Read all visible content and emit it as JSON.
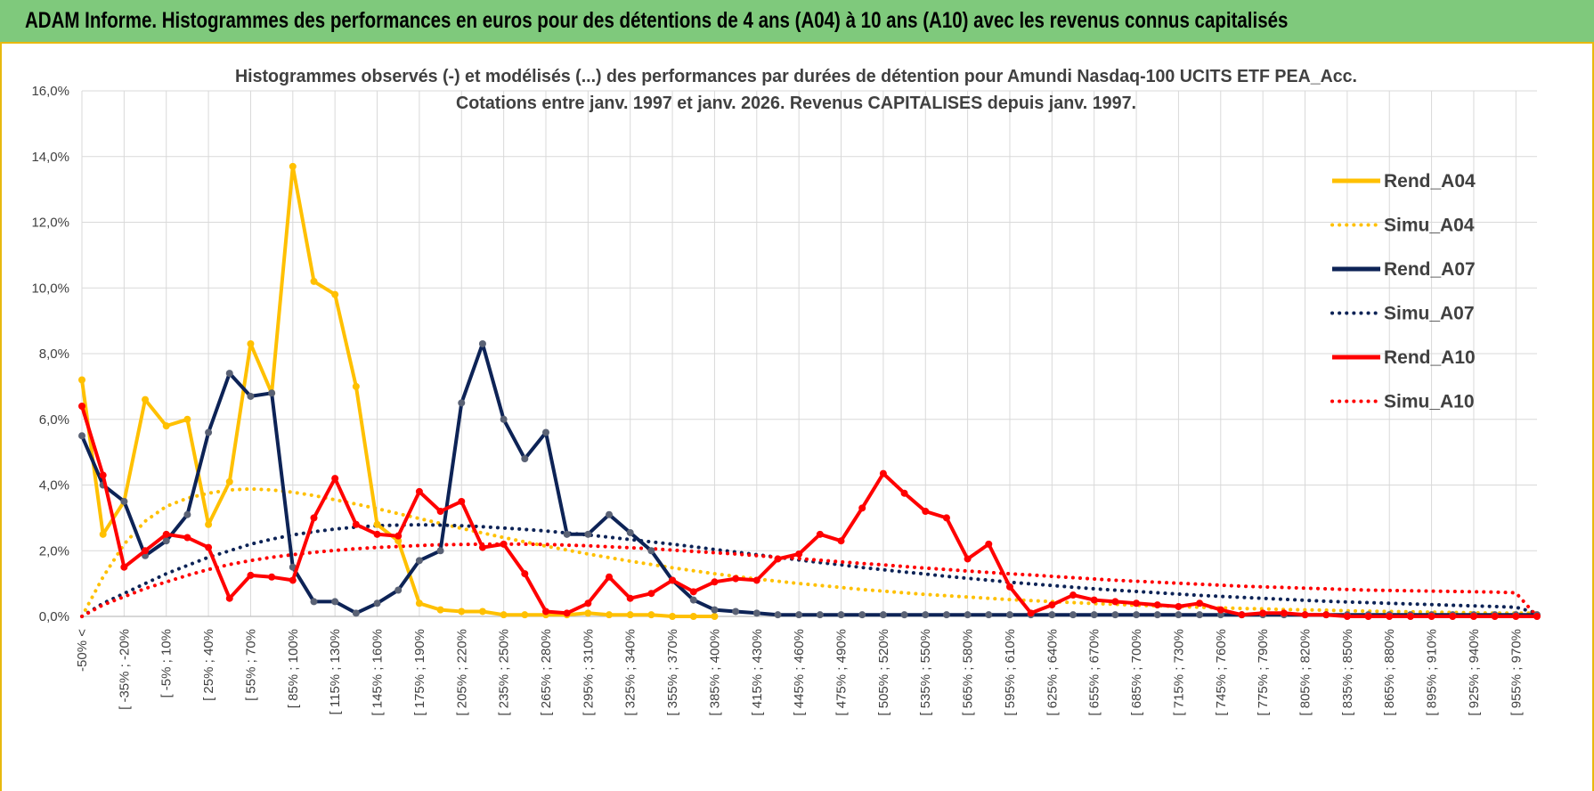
{
  "header": {
    "title": "ADAM Informe. Histogrammes des performances en euros pour des détentions de 4 ans (A04) à 10 ans (A10) avec les revenus connus capitalisés"
  },
  "colors": {
    "banner": "#7fc97c",
    "a04": "#FFC000",
    "a07": "#0D2356",
    "a10": "#FF0000",
    "marker_a04": "#FFC000",
    "marker_a07": "#5A6275",
    "marker_a10": "#FF0000",
    "grid": "#D9D9D9"
  },
  "chart_data": {
    "type": "line",
    "title_line1": "Histogrammes observés (-) et modélisés (...) des performances par durées de détention pour Amundi Nasdaq-100 UCITS ETF PEA_Acc.",
    "title_line2": "Cotations entre janv. 1997 et janv. 2026. Revenus CAPITALISES depuis janv. 1997.",
    "ylim": [
      0,
      16
    ],
    "yticks": [
      "0,0%",
      "2,0%",
      "4,0%",
      "6,0%",
      "8,0%",
      "10,0%",
      "12,0%",
      "14,0%",
      "16,0%"
    ],
    "x_labels": [
      "-50% <",
      "[ -35% ; -20%",
      "[ -5% ; 10%",
      "[ 25% ; 40%",
      "[ 55% ; 70%",
      "[ 85% ; 100%",
      "[ 115% ; 130%",
      "[ 145% ; 160%",
      "[ 175% ; 190%",
      "[ 205% ; 220%",
      "[ 235% ; 250%",
      "[ 265% ; 280%",
      "[ 295% ; 310%",
      "[ 325% ; 340%",
      "[ 355% ; 370%",
      "[ 385% ; 400%",
      "[ 415% ; 430%",
      "[ 445% ; 460%",
      "[ 475% ; 490%",
      "[ 505% ; 520%",
      "[ 535% ; 550%",
      "[ 565% ; 580%",
      "[ 595% ; 610%",
      "[ 625% ; 640%",
      "[ 655% ; 670%",
      "[ 685% ; 700%",
      "[ 715% ; 730%",
      "[ 745% ; 760%",
      "[ 775% ; 790%",
      "[ 805% ; 820%",
      "[ 835% ; 850%",
      "[ 865% ; 880%",
      "[ 895% ; 910%",
      "[ 925% ; 940%",
      "[ 955% ; 970%"
    ],
    "legend_position": "right",
    "series": [
      {
        "name": "Rend_A04",
        "style": "solid",
        "color_key": "a04",
        "values": [
          7.2,
          2.5,
          3.5,
          6.6,
          5.8,
          6.0,
          2.8,
          4.1,
          8.3,
          6.8,
          13.7,
          10.2,
          9.8,
          7.0,
          2.8,
          2.3,
          0.4,
          0.2,
          0.15,
          0.15,
          0.05,
          0.05,
          0.05,
          0.05,
          0.1,
          0.05,
          0.05,
          0.05,
          0.0,
          0.0,
          0.0
        ]
      },
      {
        "name": "Simu_A04",
        "style": "dotted",
        "color_key": "a04",
        "values": [
          0.0,
          1.2,
          2.2,
          2.9,
          3.35,
          3.6,
          3.75,
          3.85,
          3.88,
          3.85,
          3.78,
          3.68,
          3.55,
          3.42,
          3.28,
          3.13,
          2.98,
          2.83,
          2.68,
          2.54,
          2.4,
          2.27,
          2.14,
          2.02,
          1.9,
          1.79,
          1.68,
          1.58,
          1.48,
          1.39,
          1.3,
          1.22,
          1.14,
          1.07,
          1.0,
          0.94,
          0.88,
          0.82,
          0.77,
          0.72,
          0.67,
          0.63,
          0.59,
          0.55,
          0.51,
          0.48,
          0.45,
          0.42,
          0.39,
          0.37,
          0.34,
          0.32,
          0.3,
          0.28,
          0.26,
          0.24,
          0.23,
          0.21,
          0.2,
          0.19,
          0.17,
          0.16,
          0.15,
          0.14,
          0.13,
          0.12,
          0.11,
          0.1,
          0.1,
          0.1
        ]
      },
      {
        "name": "Rend_A07",
        "style": "solid",
        "color_key": "a07",
        "values": [
          5.5,
          4.0,
          3.5,
          1.85,
          2.3,
          3.1,
          5.6,
          7.4,
          6.7,
          6.8,
          1.5,
          0.45,
          0.45,
          0.1,
          0.4,
          0.8,
          1.7,
          2.0,
          6.5,
          8.3,
          6.0,
          4.8,
          5.6,
          2.5,
          2.5,
          3.1,
          2.55,
          2.0,
          1.1,
          0.5,
          0.2,
          0.15,
          0.1,
          0.05,
          0.05,
          0.05,
          0.05,
          0.05,
          0.05,
          0.05,
          0.05,
          0.05,
          0.05,
          0.05,
          0.05,
          0.05,
          0.05,
          0.05,
          0.05,
          0.05,
          0.05,
          0.05,
          0.05,
          0.05,
          0.05,
          0.05,
          0.05,
          0.05,
          0.05,
          0.05,
          0.05,
          0.05,
          0.05,
          0.05,
          0.05,
          0.05,
          0.05,
          0.05,
          0.05,
          0.05
        ]
      },
      {
        "name": "Simu_A07",
        "style": "dotted",
        "color_key": "a07",
        "values": [
          0.0,
          0.4,
          0.7,
          1.0,
          1.3,
          1.55,
          1.8,
          2.0,
          2.2,
          2.35,
          2.48,
          2.58,
          2.66,
          2.72,
          2.76,
          2.78,
          2.79,
          2.78,
          2.76,
          2.73,
          2.69,
          2.65,
          2.6,
          2.54,
          2.48,
          2.41,
          2.34,
          2.27,
          2.2,
          2.12,
          2.04,
          1.96,
          1.88,
          1.8,
          1.72,
          1.64,
          1.57,
          1.49,
          1.42,
          1.35,
          1.29,
          1.22,
          1.16,
          1.1,
          1.04,
          0.99,
          0.94,
          0.89,
          0.84,
          0.8,
          0.76,
          0.72,
          0.68,
          0.64,
          0.61,
          0.58,
          0.55,
          0.52,
          0.49,
          0.46,
          0.44,
          0.42,
          0.4,
          0.38,
          0.36,
          0.34,
          0.32,
          0.3,
          0.28,
          0.1
        ]
      },
      {
        "name": "Rend_A10",
        "style": "solid",
        "color_key": "a10",
        "values": [
          6.4,
          4.3,
          1.5,
          2.0,
          2.5,
          2.4,
          2.1,
          0.55,
          1.25,
          1.2,
          1.1,
          3.0,
          4.2,
          2.8,
          2.5,
          2.45,
          3.8,
          3.2,
          3.5,
          2.1,
          2.2,
          1.3,
          0.15,
          0.1,
          0.4,
          1.2,
          0.55,
          0.7,
          1.1,
          0.75,
          1.05,
          1.15,
          1.1,
          1.75,
          1.9,
          2.5,
          2.3,
          3.3,
          4.35,
          3.75,
          3.2,
          3.0,
          1.75,
          2.2,
          0.9,
          0.1,
          0.35,
          0.65,
          0.5,
          0.45,
          0.4,
          0.35,
          0.3,
          0.4,
          0.2,
          0.05,
          0.1,
          0.1,
          0.05,
          0.05,
          0.0,
          0.0,
          0.0,
          0.0,
          0.0,
          0.0,
          0.0,
          0.0,
          0.0,
          0.0
        ]
      },
      {
        "name": "Simu_A10",
        "style": "dotted",
        "color_key": "a10",
        "values": [
          0.0,
          0.35,
          0.6,
          0.85,
          1.05,
          1.25,
          1.43,
          1.58,
          1.7,
          1.8,
          1.88,
          1.95,
          2.01,
          2.06,
          2.1,
          2.13,
          2.16,
          2.18,
          2.19,
          2.2,
          2.2,
          2.2,
          2.19,
          2.17,
          2.15,
          2.12,
          2.09,
          2.06,
          2.02,
          1.98,
          1.94,
          1.9,
          1.85,
          1.8,
          1.76,
          1.71,
          1.66,
          1.61,
          1.57,
          1.52,
          1.47,
          1.43,
          1.38,
          1.34,
          1.3,
          1.26,
          1.22,
          1.18,
          1.14,
          1.1,
          1.07,
          1.04,
          1.01,
          0.98,
          0.95,
          0.92,
          0.9,
          0.88,
          0.86,
          0.84,
          0.82,
          0.8,
          0.79,
          0.78,
          0.77,
          0.76,
          0.75,
          0.74,
          0.72,
          0.0
        ]
      }
    ]
  }
}
